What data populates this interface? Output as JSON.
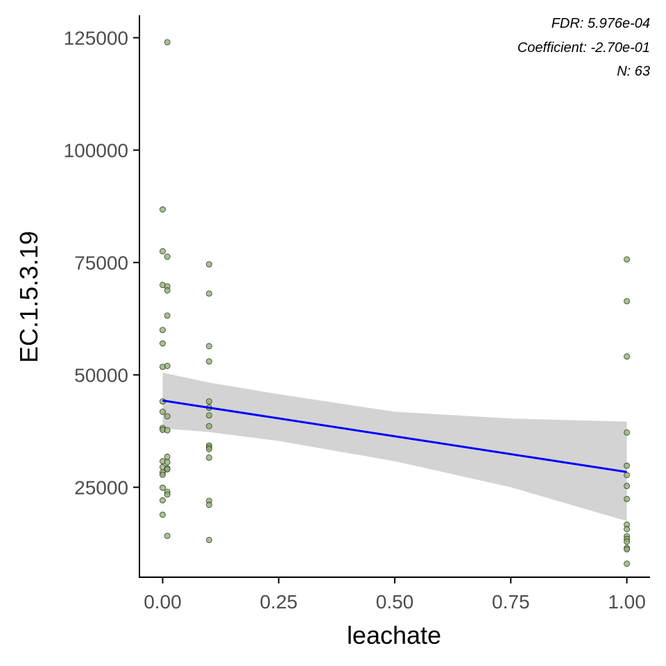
{
  "chart_data": {
    "type": "scatter",
    "xlabel": "leachate",
    "ylabel": "EC.1.5.3.19",
    "xlim": [
      -0.05,
      1.05
    ],
    "ylim": [
      5000,
      130000
    ],
    "x_ticks": [
      0.0,
      0.25,
      0.5,
      0.75,
      1.0
    ],
    "x_tick_labels": [
      "0.00",
      "0.25",
      "0.50",
      "0.75",
      "1.00"
    ],
    "y_ticks": [
      25000,
      50000,
      75000,
      100000,
      125000
    ],
    "y_tick_labels": [
      "25000",
      "50000",
      "75000",
      "100000",
      "125000"
    ],
    "grid": false,
    "annotations": [
      "FDR: 5.976e-04",
      "Coefficient: -2.70e-01",
      "N: 63"
    ],
    "colors": {
      "point_fill": "#8fac70",
      "point_stroke": "#2f3a22",
      "fit_line": "#0000ff",
      "ci_band": "#d3d3d3",
      "axis": "#000000"
    },
    "points": [
      [
        0.01,
        124000
      ],
      [
        0.0,
        86800
      ],
      [
        0.0,
        77500
      ],
      [
        0.01,
        76300
      ],
      [
        0.0,
        70000
      ],
      [
        0.01,
        69700
      ],
      [
        0.01,
        68800
      ],
      [
        0.01,
        63200
      ],
      [
        0.0,
        60000
      ],
      [
        0.0,
        57000
      ],
      [
        0.0,
        51800
      ],
      [
        0.01,
        52000
      ],
      [
        0.0,
        44100
      ],
      [
        0.0,
        41800
      ],
      [
        0.01,
        40800
      ],
      [
        0.0,
        38200
      ],
      [
        0.0,
        37800
      ],
      [
        0.01,
        37700
      ],
      [
        0.01,
        31800
      ],
      [
        0.0,
        30800
      ],
      [
        0.01,
        30600
      ],
      [
        0.0,
        29500
      ],
      [
        0.01,
        29200
      ],
      [
        0.01,
        29000
      ],
      [
        0.0,
        28300
      ],
      [
        0.0,
        27800
      ],
      [
        0.0,
        24900
      ],
      [
        0.01,
        24000
      ],
      [
        0.01,
        23400
      ],
      [
        0.0,
        22100
      ],
      [
        0.0,
        18900
      ],
      [
        0.01,
        14200
      ],
      [
        0.1,
        74600
      ],
      [
        0.1,
        68100
      ],
      [
        0.1,
        56400
      ],
      [
        0.1,
        53000
      ],
      [
        0.1,
        44100
      ],
      [
        0.1,
        42700
      ],
      [
        0.1,
        41000
      ],
      [
        0.1,
        38600
      ],
      [
        0.1,
        34300
      ],
      [
        0.1,
        33900
      ],
      [
        0.1,
        33500
      ],
      [
        0.1,
        31600
      ],
      [
        0.1,
        22000
      ],
      [
        0.1,
        21100
      ],
      [
        0.1,
        13300
      ],
      [
        1.0,
        75700
      ],
      [
        1.0,
        66400
      ],
      [
        1.0,
        54100
      ],
      [
        1.0,
        37200
      ],
      [
        1.0,
        29800
      ],
      [
        1.0,
        27700
      ],
      [
        1.0,
        25300
      ],
      [
        1.0,
        22400
      ],
      [
        1.0,
        16700
      ],
      [
        1.0,
        15700
      ],
      [
        1.0,
        14100
      ],
      [
        1.0,
        13500
      ],
      [
        1.0,
        12900
      ],
      [
        1.0,
        11500
      ],
      [
        1.0,
        11200
      ],
      [
        1.0,
        8000
      ]
    ],
    "fit": {
      "x": [
        0.0,
        1.0
      ],
      "y": [
        44300,
        28400
      ]
    },
    "ci_band": {
      "x": [
        0.0,
        0.1,
        0.25,
        0.5,
        0.75,
        1.0
      ],
      "lower": [
        38100,
        37300,
        35300,
        30800,
        25000,
        17500
      ],
      "upper": [
        50500,
        48300,
        45700,
        41800,
        40300,
        39600
      ]
    }
  }
}
